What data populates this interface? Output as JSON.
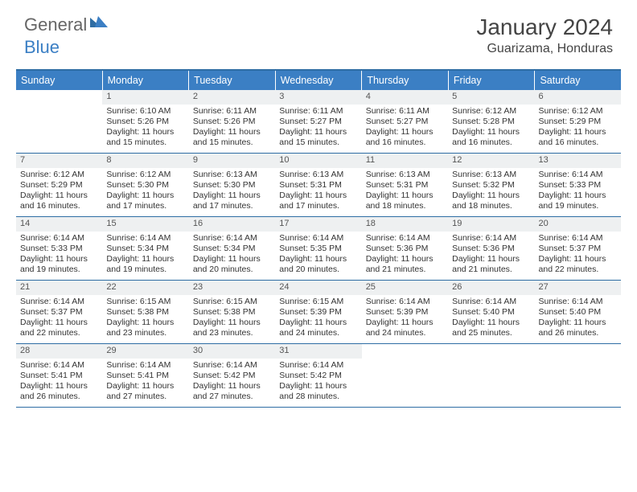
{
  "brand": {
    "part1": "General",
    "part2": "Blue"
  },
  "title": "January 2024",
  "location": "Guarizama, Honduras",
  "colors": {
    "header_bg": "#3b7fc4",
    "rule": "#2e6da4",
    "daynum_bg": "#eef0f1",
    "text": "#333333",
    "background": "#ffffff"
  },
  "day_headers": [
    "Sunday",
    "Monday",
    "Tuesday",
    "Wednesday",
    "Thursday",
    "Friday",
    "Saturday"
  ],
  "weeks": [
    [
      {
        "n": "",
        "sunrise": "",
        "sunset": "",
        "daylight": ""
      },
      {
        "n": "1",
        "sunrise": "Sunrise: 6:10 AM",
        "sunset": "Sunset: 5:26 PM",
        "daylight": "Daylight: 11 hours and 15 minutes."
      },
      {
        "n": "2",
        "sunrise": "Sunrise: 6:11 AM",
        "sunset": "Sunset: 5:26 PM",
        "daylight": "Daylight: 11 hours and 15 minutes."
      },
      {
        "n": "3",
        "sunrise": "Sunrise: 6:11 AM",
        "sunset": "Sunset: 5:27 PM",
        "daylight": "Daylight: 11 hours and 15 minutes."
      },
      {
        "n": "4",
        "sunrise": "Sunrise: 6:11 AM",
        "sunset": "Sunset: 5:27 PM",
        "daylight": "Daylight: 11 hours and 16 minutes."
      },
      {
        "n": "5",
        "sunrise": "Sunrise: 6:12 AM",
        "sunset": "Sunset: 5:28 PM",
        "daylight": "Daylight: 11 hours and 16 minutes."
      },
      {
        "n": "6",
        "sunrise": "Sunrise: 6:12 AM",
        "sunset": "Sunset: 5:29 PM",
        "daylight": "Daylight: 11 hours and 16 minutes."
      }
    ],
    [
      {
        "n": "7",
        "sunrise": "Sunrise: 6:12 AM",
        "sunset": "Sunset: 5:29 PM",
        "daylight": "Daylight: 11 hours and 16 minutes."
      },
      {
        "n": "8",
        "sunrise": "Sunrise: 6:12 AM",
        "sunset": "Sunset: 5:30 PM",
        "daylight": "Daylight: 11 hours and 17 minutes."
      },
      {
        "n": "9",
        "sunrise": "Sunrise: 6:13 AM",
        "sunset": "Sunset: 5:30 PM",
        "daylight": "Daylight: 11 hours and 17 minutes."
      },
      {
        "n": "10",
        "sunrise": "Sunrise: 6:13 AM",
        "sunset": "Sunset: 5:31 PM",
        "daylight": "Daylight: 11 hours and 17 minutes."
      },
      {
        "n": "11",
        "sunrise": "Sunrise: 6:13 AM",
        "sunset": "Sunset: 5:31 PM",
        "daylight": "Daylight: 11 hours and 18 minutes."
      },
      {
        "n": "12",
        "sunrise": "Sunrise: 6:13 AM",
        "sunset": "Sunset: 5:32 PM",
        "daylight": "Daylight: 11 hours and 18 minutes."
      },
      {
        "n": "13",
        "sunrise": "Sunrise: 6:14 AM",
        "sunset": "Sunset: 5:33 PM",
        "daylight": "Daylight: 11 hours and 19 minutes."
      }
    ],
    [
      {
        "n": "14",
        "sunrise": "Sunrise: 6:14 AM",
        "sunset": "Sunset: 5:33 PM",
        "daylight": "Daylight: 11 hours and 19 minutes."
      },
      {
        "n": "15",
        "sunrise": "Sunrise: 6:14 AM",
        "sunset": "Sunset: 5:34 PM",
        "daylight": "Daylight: 11 hours and 19 minutes."
      },
      {
        "n": "16",
        "sunrise": "Sunrise: 6:14 AM",
        "sunset": "Sunset: 5:34 PM",
        "daylight": "Daylight: 11 hours and 20 minutes."
      },
      {
        "n": "17",
        "sunrise": "Sunrise: 6:14 AM",
        "sunset": "Sunset: 5:35 PM",
        "daylight": "Daylight: 11 hours and 20 minutes."
      },
      {
        "n": "18",
        "sunrise": "Sunrise: 6:14 AM",
        "sunset": "Sunset: 5:36 PM",
        "daylight": "Daylight: 11 hours and 21 minutes."
      },
      {
        "n": "19",
        "sunrise": "Sunrise: 6:14 AM",
        "sunset": "Sunset: 5:36 PM",
        "daylight": "Daylight: 11 hours and 21 minutes."
      },
      {
        "n": "20",
        "sunrise": "Sunrise: 6:14 AM",
        "sunset": "Sunset: 5:37 PM",
        "daylight": "Daylight: 11 hours and 22 minutes."
      }
    ],
    [
      {
        "n": "21",
        "sunrise": "Sunrise: 6:14 AM",
        "sunset": "Sunset: 5:37 PM",
        "daylight": "Daylight: 11 hours and 22 minutes."
      },
      {
        "n": "22",
        "sunrise": "Sunrise: 6:15 AM",
        "sunset": "Sunset: 5:38 PM",
        "daylight": "Daylight: 11 hours and 23 minutes."
      },
      {
        "n": "23",
        "sunrise": "Sunrise: 6:15 AM",
        "sunset": "Sunset: 5:38 PM",
        "daylight": "Daylight: 11 hours and 23 minutes."
      },
      {
        "n": "24",
        "sunrise": "Sunrise: 6:15 AM",
        "sunset": "Sunset: 5:39 PM",
        "daylight": "Daylight: 11 hours and 24 minutes."
      },
      {
        "n": "25",
        "sunrise": "Sunrise: 6:14 AM",
        "sunset": "Sunset: 5:39 PM",
        "daylight": "Daylight: 11 hours and 24 minutes."
      },
      {
        "n": "26",
        "sunrise": "Sunrise: 6:14 AM",
        "sunset": "Sunset: 5:40 PM",
        "daylight": "Daylight: 11 hours and 25 minutes."
      },
      {
        "n": "27",
        "sunrise": "Sunrise: 6:14 AM",
        "sunset": "Sunset: 5:40 PM",
        "daylight": "Daylight: 11 hours and 26 minutes."
      }
    ],
    [
      {
        "n": "28",
        "sunrise": "Sunrise: 6:14 AM",
        "sunset": "Sunset: 5:41 PM",
        "daylight": "Daylight: 11 hours and 26 minutes."
      },
      {
        "n": "29",
        "sunrise": "Sunrise: 6:14 AM",
        "sunset": "Sunset: 5:41 PM",
        "daylight": "Daylight: 11 hours and 27 minutes."
      },
      {
        "n": "30",
        "sunrise": "Sunrise: 6:14 AM",
        "sunset": "Sunset: 5:42 PM",
        "daylight": "Daylight: 11 hours and 27 minutes."
      },
      {
        "n": "31",
        "sunrise": "Sunrise: 6:14 AM",
        "sunset": "Sunset: 5:42 PM",
        "daylight": "Daylight: 11 hours and 28 minutes."
      },
      {
        "n": "",
        "sunrise": "",
        "sunset": "",
        "daylight": ""
      },
      {
        "n": "",
        "sunrise": "",
        "sunset": "",
        "daylight": ""
      },
      {
        "n": "",
        "sunrise": "",
        "sunset": "",
        "daylight": ""
      }
    ]
  ]
}
